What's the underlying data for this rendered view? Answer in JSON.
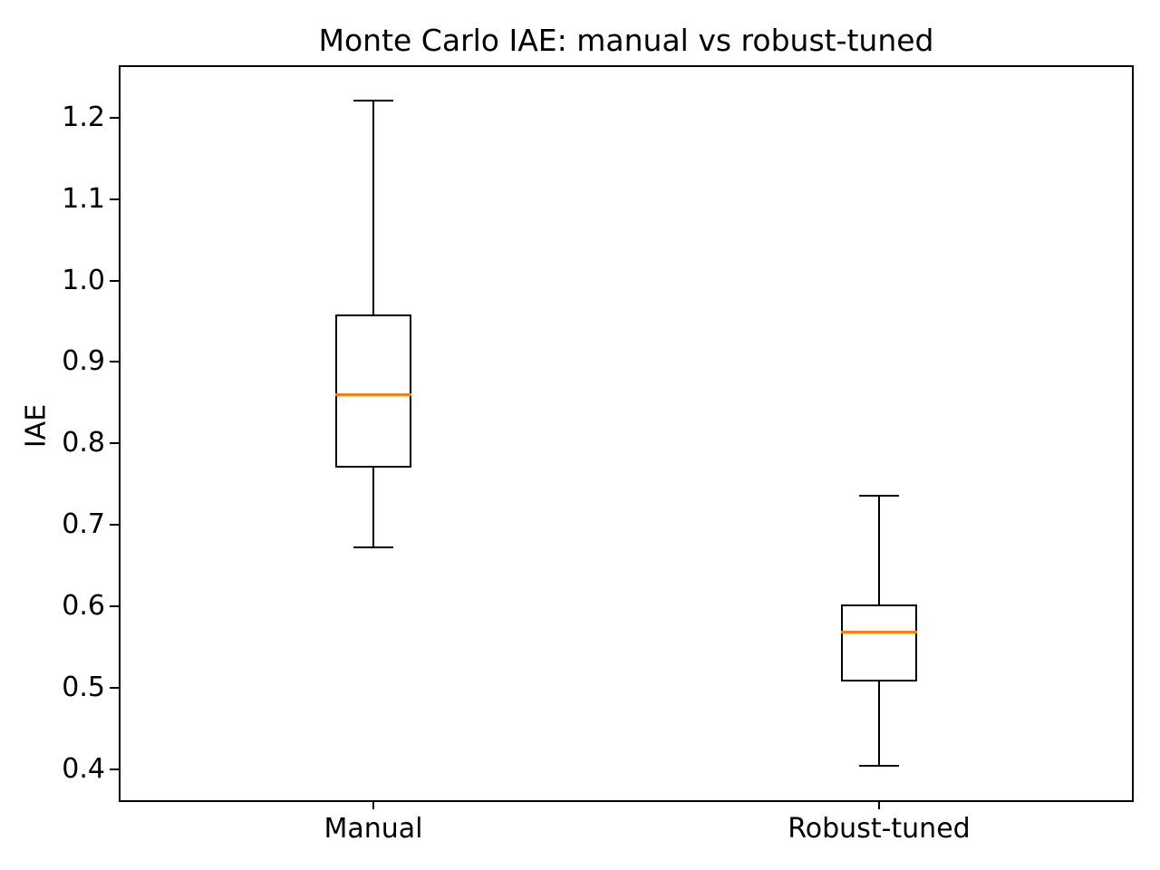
{
  "chart_data": {
    "type": "boxplot",
    "title": "Monte Carlo IAE: manual vs robust-tuned",
    "ylabel": "IAE",
    "xlabel": "",
    "categories": [
      "Manual",
      "Robust-tuned"
    ],
    "positions": [
      1,
      2
    ],
    "series": [
      {
        "name": "Manual",
        "whisker_low": 0.672,
        "q1": 0.77,
        "median": 0.86,
        "q3": 0.958,
        "whisker_high": 1.221
      },
      {
        "name": "Robust-tuned",
        "whisker_low": 0.404,
        "q1": 0.508,
        "median": 0.568,
        "q3": 0.602,
        "whisker_high": 0.736
      }
    ],
    "yticks": [
      0.4,
      0.5,
      0.6,
      0.7,
      0.8,
      0.9,
      1.0,
      1.1,
      1.2
    ],
    "ylim": [
      0.362,
      1.262
    ],
    "xlim": [
      0.5,
      2.5
    ],
    "box_width": 0.152,
    "cap_width": 0.079,
    "grid": false,
    "legend_position": "none",
    "colors": {
      "line": "#000000",
      "median": "#ff7f0e",
      "text": "#000000",
      "background": "#ffffff"
    }
  }
}
